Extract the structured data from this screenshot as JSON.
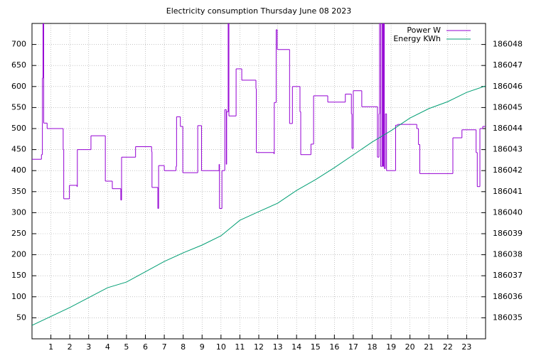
{
  "chart_data": {
    "type": "step-line",
    "title": "Electricity consumption Thursday June 08 2023",
    "xlim": [
      0,
      24
    ],
    "xticks": [
      1,
      2,
      3,
      4,
      5,
      6,
      7,
      8,
      9,
      10,
      11,
      12,
      13,
      14,
      15,
      16,
      17,
      18,
      19,
      20,
      21,
      22,
      23
    ],
    "ylim": [
      0,
      750
    ],
    "yticks": [
      50,
      100,
      150,
      200,
      250,
      300,
      350,
      400,
      450,
      500,
      550,
      600,
      650,
      700
    ],
    "y2lim": [
      186034,
      186049
    ],
    "y2ticks": [
      186035,
      186036,
      186037,
      186038,
      186039,
      186040,
      186041,
      186042,
      186043,
      186044,
      186045,
      186046,
      186047,
      186048
    ],
    "grid": true,
    "legend": "top-right",
    "series": [
      {
        "name": "Power W",
        "color": "#9400d3",
        "step": true,
        "x": [
          0,
          0.5,
          0.55,
          0.58,
          0.62,
          0.8,
          1.65,
          1.68,
          1.98,
          2.38,
          2.4,
          3.12,
          3.88,
          4.25,
          4.7,
          4.74,
          5.48,
          6.33,
          6.35,
          6.66,
          6.7,
          7.0,
          7.62,
          7.65,
          7.85,
          7.98,
          8.77,
          8.97,
          9.9,
          9.92,
          10.05,
          10.2,
          10.28,
          10.3,
          10.38,
          10.42,
          10.8,
          11.1,
          11.85,
          11.87,
          12.8,
          12.82,
          12.92,
          12.98,
          13.63,
          13.78,
          14.18,
          14.22,
          14.76,
          14.9,
          15.65,
          16.58,
          16.9,
          16.93,
          17.0,
          17.45,
          18.28,
          18.36,
          18.39,
          18.45,
          18.52,
          18.56,
          18.6,
          18.64,
          18.7,
          18.76,
          19.24,
          19.35,
          20.36,
          20.45,
          20.52,
          22.27,
          22.75,
          23.5,
          23.56,
          23.7,
          23.85
        ],
        "values": [
          427,
          438,
          620,
          750,
          513,
          500,
          450,
          333,
          365,
          362,
          450,
          483,
          375,
          357,
          330,
          432,
          457,
          445,
          360,
          310,
          412,
          400,
          410,
          528,
          505,
          395,
          507,
          400,
          415,
          310,
          400,
          545,
          415,
          540,
          750,
          530,
          642,
          615,
          595,
          443,
          440,
          562,
          735,
          688,
          512,
          600,
          540,
          438,
          463,
          578,
          563,
          582,
          535,
          453,
          590,
          552,
          432,
          535,
          750,
          410,
          750,
          410,
          750,
          405,
          535,
          400,
          508,
          510,
          500,
          462,
          393,
          478,
          497,
          443,
          362,
          500,
          505
        ]
      },
      {
        "name": "Energy KWh",
        "color": "#009e73",
        "axis": "y2",
        "x": [
          0,
          2,
          4,
          5,
          7,
          8,
          9,
          10,
          11,
          12,
          13,
          14,
          15,
          16,
          17,
          18,
          19,
          20,
          21,
          22,
          23,
          24
        ],
        "values": [
          186034.64,
          186035.49,
          186036.43,
          186036.7,
          186037.68,
          186038.09,
          186038.46,
          186038.9,
          186039.64,
          186040.05,
          186040.45,
          186041.06,
          186041.57,
          186042.14,
          186042.75,
          186043.36,
          186043.9,
          186044.5,
          186044.95,
          186045.28,
          186045.72,
          186046.03
        ]
      }
    ]
  }
}
